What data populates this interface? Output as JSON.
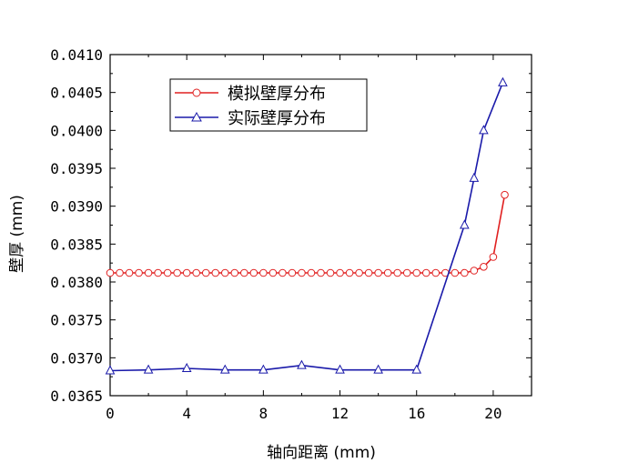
{
  "chart_data": {
    "type": "line",
    "xlabel": "轴向距离 (mm)",
    "ylabel": "壁厚 (mm)",
    "xlim": [
      0,
      22
    ],
    "ylim": [
      0.0365,
      0.041
    ],
    "xticks": [
      0,
      4,
      8,
      12,
      16,
      20
    ],
    "xtick_labels": [
      "0",
      "4",
      "8",
      "12",
      "16",
      "20"
    ],
    "yticks": [
      0.0365,
      0.037,
      0.0375,
      0.038,
      0.0385,
      0.039,
      0.0395,
      0.04,
      0.0405,
      0.041
    ],
    "ytick_labels": [
      "0.0365",
      "0.0370",
      "0.0375",
      "0.0380",
      "0.0385",
      "0.0390",
      "0.0395",
      "0.0400",
      "0.0405",
      "0.0410"
    ],
    "legend_position": "top-left",
    "grid": false,
    "series": [
      {
        "name": "模拟壁厚分布",
        "color": "#e02020",
        "marker": "circle",
        "x": [
          0,
          0.5,
          1,
          1.5,
          2,
          2.5,
          3,
          3.5,
          4,
          4.5,
          5,
          5.5,
          6,
          6.5,
          7,
          7.5,
          8,
          8.5,
          9,
          9.5,
          10,
          10.5,
          11,
          11.5,
          12,
          12.5,
          13,
          13.5,
          14,
          14.5,
          15,
          15.5,
          16,
          16.5,
          17,
          17.5,
          18,
          18.5,
          19,
          19.5,
          20,
          20.6
        ],
        "y": [
          0.03812,
          0.03812,
          0.03812,
          0.03812,
          0.03812,
          0.03812,
          0.03812,
          0.03812,
          0.03812,
          0.03812,
          0.03812,
          0.03812,
          0.03812,
          0.03812,
          0.03812,
          0.03812,
          0.03812,
          0.03812,
          0.03812,
          0.03812,
          0.03812,
          0.03812,
          0.03812,
          0.03812,
          0.03812,
          0.03812,
          0.03812,
          0.03812,
          0.03812,
          0.03812,
          0.03812,
          0.03812,
          0.03812,
          0.03812,
          0.03812,
          0.03812,
          0.03812,
          0.03812,
          0.03815,
          0.0382,
          0.03833,
          0.03915
        ]
      },
      {
        "name": "实际壁厚分布",
        "color": "#1a1aaa",
        "marker": "triangle",
        "x": [
          0,
          2,
          4,
          6,
          8,
          10,
          12,
          14,
          16,
          18.5,
          19,
          19.5,
          20.5
        ],
        "y": [
          0.03683,
          0.03684,
          0.03686,
          0.03684,
          0.03684,
          0.0369,
          0.03684,
          0.03684,
          0.03684,
          0.03875,
          0.03937,
          0.04,
          0.04063
        ]
      }
    ]
  }
}
